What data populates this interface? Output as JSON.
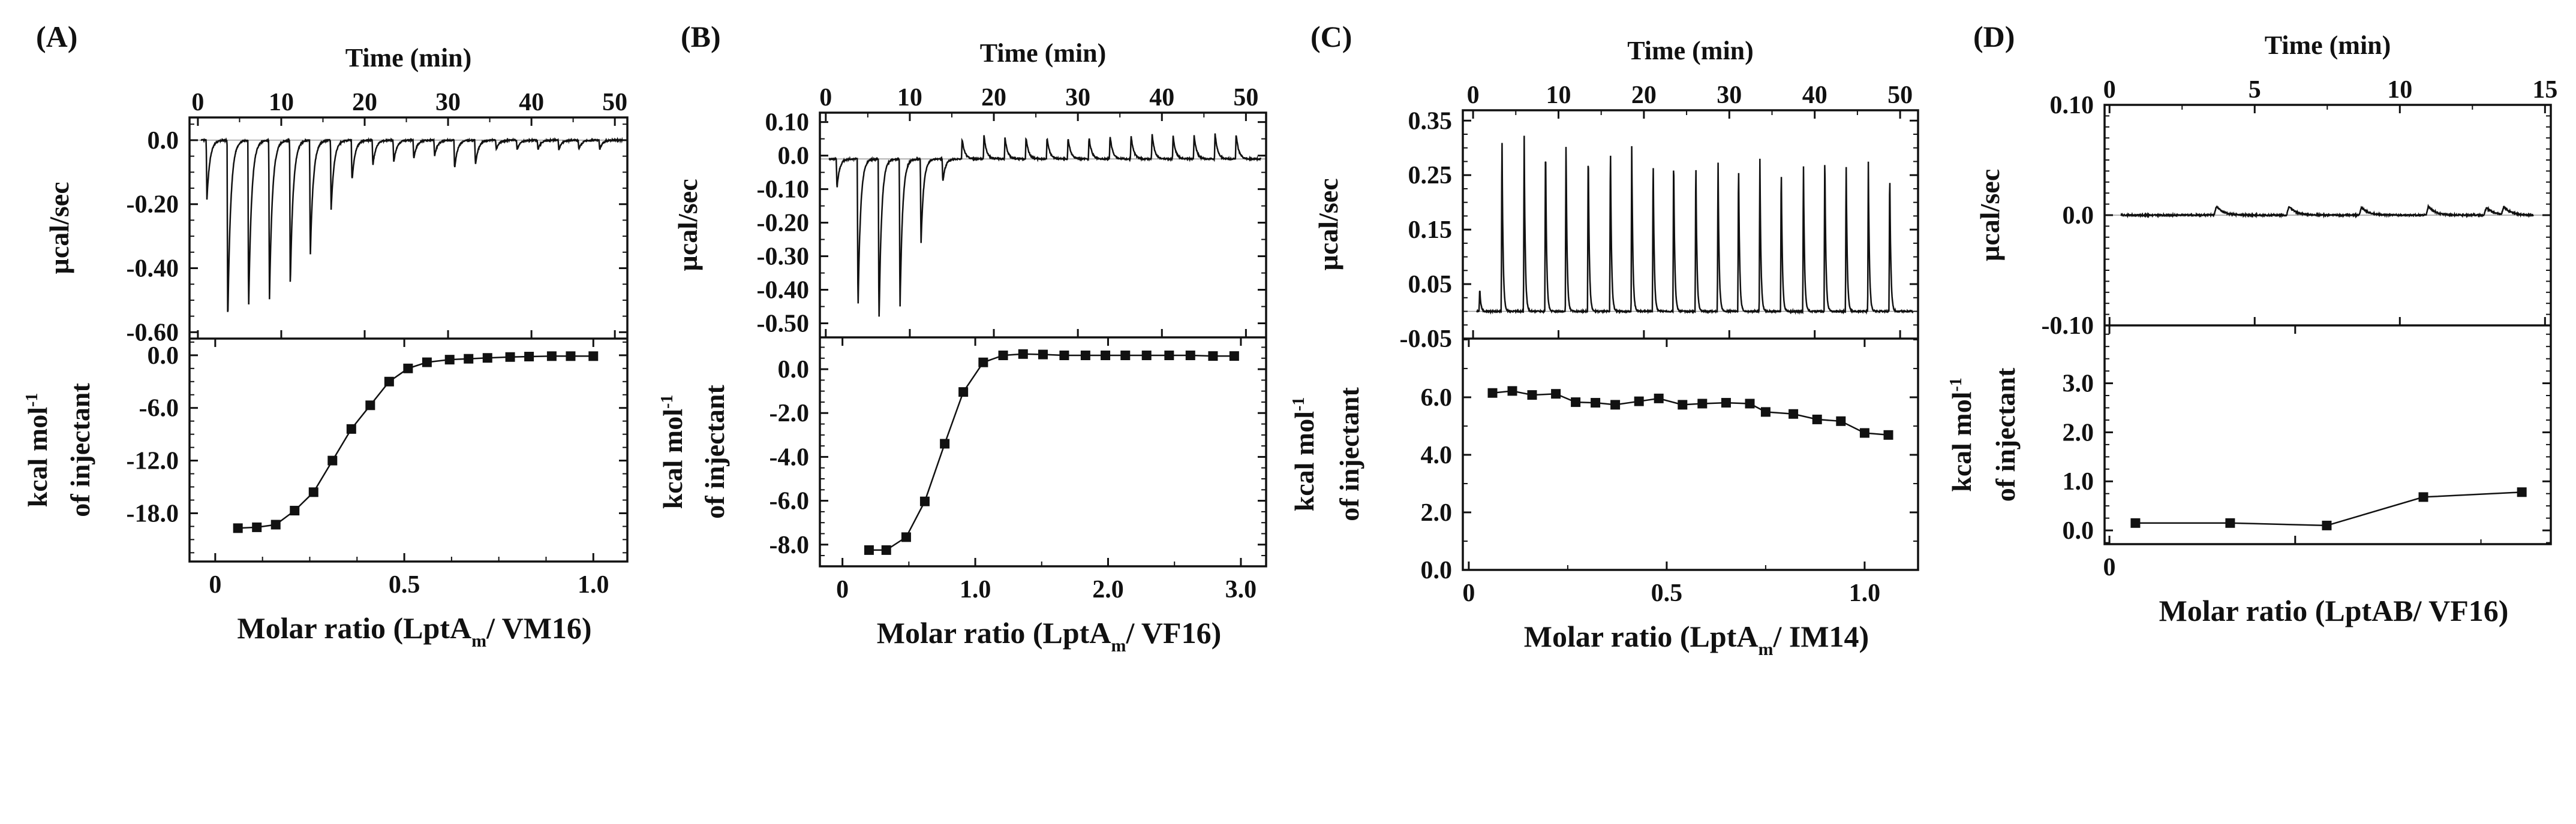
{
  "chart_data": [
    {
      "panel_label": "(A)",
      "top": {
        "type": "line",
        "title": "Time (min)",
        "ylabel": "µcal/sec",
        "xlim": [
          -1.0,
          51.5
        ],
        "ylim": [
          -0.62,
          0.071
        ],
        "xticks": [
          0,
          10,
          20,
          30,
          40,
          50
        ],
        "xtick_labels": [
          "0",
          "10",
          "20",
          "30",
          "40",
          "50"
        ],
        "xminor": 5,
        "yticks": [
          0.0,
          -0.2,
          -0.4,
          -0.6
        ],
        "ytick_labels": [
          "0.0",
          "-0.20",
          "-0.40",
          "-0.60"
        ],
        "yminor": 0.05,
        "baseline": 0.0,
        "decay_min": 0.35,
        "injections": {
          "time_min": [
            1.0,
            3.5,
            6.0,
            8.5,
            11.0,
            13.4,
            15.9,
            18.4,
            20.9,
            23.4,
            25.8,
            28.3,
            30.7,
            33.2,
            35.7,
            38.2,
            40.7,
            43.2,
            45.6,
            48.1
          ],
          "peak": [
            -0.19,
            -0.58,
            -0.54,
            -0.51,
            -0.46,
            -0.37,
            -0.22,
            -0.13,
            -0.08,
            -0.07,
            -0.06,
            -0.05,
            -0.09,
            -0.08,
            -0.03,
            -0.03,
            -0.03,
            -0.03,
            -0.03,
            -0.03
          ]
        }
      },
      "bottom": {
        "type": "line+scatter",
        "xlabel": {
          "main": "Molar ratio (LptA",
          "sub": "m",
          "end": "/ VM16)"
        },
        "ylabel": {
          "line1": "kcal mol",
          "sup": "-1",
          "line2": "of injectant"
        },
        "xlim": [
          -0.068,
          1.09
        ],
        "ylim": [
          -23.5,
          1.9
        ],
        "xticks": [
          0,
          0.5,
          1.0
        ],
        "xtick_labels": [
          "0",
          "0.5",
          "1.0"
        ],
        "xminor": 0.125,
        "yticks": [
          0.0,
          -6.0,
          -12.0,
          -18.0
        ],
        "ytick_labels": [
          "0.0",
          "-6.0",
          "-12.0",
          "-18.0"
        ],
        "yminor": 1.5,
        "x": [
          0.06,
          0.11,
          0.16,
          0.21,
          0.26,
          0.31,
          0.36,
          0.41,
          0.46,
          0.51,
          0.56,
          0.62,
          0.67,
          0.72,
          0.78,
          0.83,
          0.89,
          0.94,
          1.0
        ],
        "y": [
          -19.7,
          -19.6,
          -19.3,
          -17.7,
          -15.6,
          -12.0,
          -8.4,
          -5.7,
          -3.0,
          -1.5,
          -0.8,
          -0.5,
          -0.4,
          -0.3,
          -0.2,
          -0.15,
          -0.1,
          -0.1,
          -0.1
        ]
      }
    },
    {
      "panel_label": "(B)",
      "top": {
        "type": "line",
        "title": "Time (min)",
        "ylabel": "µcal/sec",
        "xlim": [
          -0.7,
          52.4
        ],
        "ylim": [
          -0.542,
          0.128
        ],
        "xticks": [
          0,
          10,
          20,
          30,
          40,
          50
        ],
        "xtick_labels": [
          "0",
          "10",
          "20",
          "30",
          "40",
          "50"
        ],
        "xminor": 5,
        "yticks": [
          0.1,
          0.0,
          -0.1,
          -0.2,
          -0.3,
          -0.4,
          -0.5
        ],
        "ytick_labels": [
          "0.10",
          "0.0",
          "-0.10",
          "-0.20",
          "-0.30",
          "-0.40",
          "-0.50"
        ],
        "yminor": 0.05,
        "baseline": -0.01,
        "decay_min": 0.3,
        "injections": {
          "time_min": [
            1.25,
            3.75,
            6.25,
            8.75,
            11.25,
            13.85,
            16.15,
            18.75,
            21.25,
            23.75,
            26.25,
            28.75,
            31.25,
            33.75,
            36.25,
            38.75,
            41.25,
            43.75,
            46.25,
            48.75
          ],
          "peak": [
            -0.09,
            -0.46,
            -0.5,
            -0.46,
            -0.26,
            -0.07,
            0.06,
            0.07,
            0.065,
            0.065,
            0.065,
            0.065,
            0.065,
            0.07,
            0.07,
            0.075,
            0.07,
            0.07,
            0.075,
            0.075
          ]
        }
      },
      "bottom": {
        "type": "line+scatter",
        "xlabel": {
          "main": "Molar ratio (LptA",
          "sub": "m",
          "end": "/ VF16)"
        },
        "ylabel": {
          "line1": "kcal mol",
          "sup": "-1",
          "line2": "of injectant"
        },
        "xlim": [
          -0.17,
          3.19
        ],
        "ylim": [
          -8.99,
          1.45
        ],
        "xticks": [
          0,
          1.0,
          2.0,
          3.0
        ],
        "xtick_labels": [
          "0",
          "1.0",
          "2.0",
          "3.0"
        ],
        "xminor": 0.5,
        "yticks": [
          0.0,
          -2.0,
          -4.0,
          -6.0,
          -8.0
        ],
        "ytick_labels": [
          "0.0",
          "-2.0",
          "-4.0",
          "-6.0",
          "-8.0"
        ],
        "yminor": 0.5,
        "x": [
          0.2,
          0.33,
          0.48,
          0.62,
          0.77,
          0.91,
          1.06,
          1.21,
          1.36,
          1.51,
          1.67,
          1.83,
          1.98,
          2.13,
          2.29,
          2.46,
          2.62,
          2.79,
          2.95
        ],
        "y": [
          -8.25,
          -8.25,
          -7.66,
          -6.03,
          -3.4,
          -1.04,
          0.31,
          0.63,
          0.69,
          0.67,
          0.63,
          0.63,
          0.63,
          0.63,
          0.63,
          0.63,
          0.63,
          0.6,
          0.6
        ]
      }
    },
    {
      "panel_label": "(C)",
      "top": {
        "type": "line",
        "title": "Time (min)",
        "ylabel": "µcal/sec",
        "xlim": [
          -1.2,
          52.1
        ],
        "ylim": [
          -0.05,
          0.369
        ],
        "xticks": [
          0,
          10,
          20,
          30,
          40,
          50
        ],
        "xtick_labels": [
          "0",
          "10",
          "20",
          "30",
          "40",
          "50"
        ],
        "xminor": 5,
        "yticks": [
          0.35,
          0.25,
          0.15,
          0.05,
          -0.05
        ],
        "ytick_labels": [
          "0.35",
          "0.25",
          "0.15",
          "0.05",
          "-0.05"
        ],
        "yminor": 0.025,
        "baseline": 0.0,
        "decay_min": 0.12,
        "injections": {
          "time_min": [
            0.7,
            3.3,
            5.9,
            8.4,
            10.8,
            13.4,
            16.0,
            18.5,
            21.0,
            23.4,
            26.0,
            28.6,
            31.0,
            33.5,
            36.0,
            38.6,
            41.1,
            43.6,
            46.2,
            48.7
          ],
          "peak": [
            0.045,
            0.345,
            0.335,
            0.33,
            0.32,
            0.32,
            0.325,
            0.315,
            0.3,
            0.305,
            0.295,
            0.29,
            0.29,
            0.285,
            0.285,
            0.285,
            0.305,
            0.285,
            0.275,
            0.275
          ]
        }
      },
      "bottom": {
        "type": "line+scatter",
        "xlabel": {
          "main": "Molar ratio (LptA",
          "sub": "m",
          "end": "/ IM14)"
        },
        "ylabel": {
          "line1": "kcal mol",
          "sup": "-1",
          "line2": "of injectant"
        },
        "xlim": [
          -0.015,
          1.135
        ],
        "ylim": [
          0.0,
          8.04
        ],
        "xticks": [
          0,
          0.5,
          1.0
        ],
        "xtick_labels": [
          "0",
          "0.5",
          "1.0"
        ],
        "xminor": 0.25,
        "yticks": [
          0.0,
          2.0,
          4.0,
          6.0
        ],
        "ytick_labels": [
          "0.0",
          "2.0",
          "4.0",
          "6.0"
        ],
        "yminor": 1.0,
        "x": [
          0.06,
          0.11,
          0.16,
          0.22,
          0.27,
          0.32,
          0.37,
          0.43,
          0.48,
          0.54,
          0.59,
          0.65,
          0.71,
          0.75,
          0.82,
          0.88,
          0.94,
          1.0,
          1.06
        ],
        "y": [
          6.15,
          6.22,
          6.08,
          6.12,
          5.83,
          5.81,
          5.74,
          5.86,
          5.96,
          5.74,
          5.78,
          5.81,
          5.78,
          5.49,
          5.42,
          5.23,
          5.17,
          4.76,
          4.69
        ]
      }
    },
    {
      "panel_label": "(D)",
      "top": {
        "type": "line",
        "title": "Time (min)",
        "ylabel": "µcal/sec",
        "xlim": [
          -0.17,
          15.2
        ],
        "ylim": [
          -0.1,
          0.1
        ],
        "xticks": [
          0,
          5,
          10,
          15
        ],
        "xtick_labels": [
          "0",
          "5",
          "10",
          "15"
        ],
        "xminor": 2.5,
        "yticks": [
          0.1,
          0.0,
          -0.1
        ],
        "ytick_labels": [
          "0.10",
          "0.0",
          "-0.10"
        ],
        "yminor": 0.01,
        "baseline": 0.0,
        "decay_min": 0.25,
        "injections": {
          "time_min": [
            3.6,
            6.1,
            8.6,
            10.9,
            12.9,
            13.5
          ],
          "peak": [
            0.008,
            0.008,
            0.007,
            0.008,
            0.007,
            0.007
          ]
        }
      },
      "bottom": {
        "type": "line+scatter",
        "xlabel": {
          "main": "Molar ratio (LptAB/ VF16)",
          "sub": "",
          "end": ""
        },
        "ylabel": {
          "line1": "kcal mol",
          "sup": "-1",
          "line2": "of injectant"
        },
        "xlim": [
          -0.026,
          2.376
        ],
        "ylim": [
          -0.28,
          4.18
        ],
        "xticks": [
          0,
          1.0
        ],
        "xtick_labels": [
          "0",
          ""
        ],
        "xminor": 1.0,
        "yticks": [
          0.0,
          1.0,
          2.0,
          3.0
        ],
        "ytick_labels": [
          "0.0",
          "1.0",
          "2.0",
          "3.0"
        ],
        "yminor": 0.25,
        "x": [
          0.14,
          0.65,
          1.17,
          1.69,
          2.22
        ],
        "y": [
          0.15,
          0.15,
          0.1,
          0.68,
          0.78
        ]
      }
    }
  ],
  "colors": {
    "ink": "#111111",
    "baseline": "#9a9a9a"
  }
}
